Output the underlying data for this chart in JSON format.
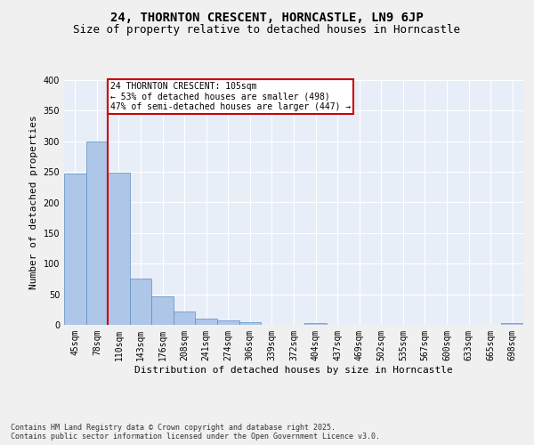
{
  "title_line1": "24, THORNTON CRESCENT, HORNCASTLE, LN9 6JP",
  "title_line2": "Size of property relative to detached houses in Horncastle",
  "xlabel": "Distribution of detached houses by size in Horncastle",
  "ylabel": "Number of detached properties",
  "categories": [
    "45sqm",
    "78sqm",
    "110sqm",
    "143sqm",
    "176sqm",
    "208sqm",
    "241sqm",
    "274sqm",
    "306sqm",
    "339sqm",
    "372sqm",
    "404sqm",
    "437sqm",
    "469sqm",
    "502sqm",
    "535sqm",
    "567sqm",
    "600sqm",
    "633sqm",
    "665sqm",
    "698sqm"
  ],
  "values": [
    247,
    300,
    248,
    76,
    47,
    22,
    10,
    7,
    4,
    0,
    0,
    3,
    0,
    0,
    0,
    0,
    0,
    0,
    0,
    0,
    3
  ],
  "bar_color": "#aec6e8",
  "bar_edge_color": "#5a8fc2",
  "vline_index": 2,
  "vline_color": "#cc0000",
  "annotation_text": "24 THORNTON CRESCENT: 105sqm\n← 53% of detached houses are smaller (498)\n47% of semi-detached houses are larger (447) →",
  "annotation_box_color": "#cc0000",
  "annotation_fontsize": 7,
  "background_color": "#e8eef8",
  "grid_color": "#ffffff",
  "fig_background": "#f0f0f0",
  "ylim": [
    0,
    400
  ],
  "yticks": [
    0,
    50,
    100,
    150,
    200,
    250,
    300,
    350,
    400
  ],
  "footnote": "Contains HM Land Registry data © Crown copyright and database right 2025.\nContains public sector information licensed under the Open Government Licence v3.0.",
  "title_fontsize": 10,
  "subtitle_fontsize": 9,
  "xlabel_fontsize": 8,
  "ylabel_fontsize": 8,
  "tick_fontsize": 7
}
